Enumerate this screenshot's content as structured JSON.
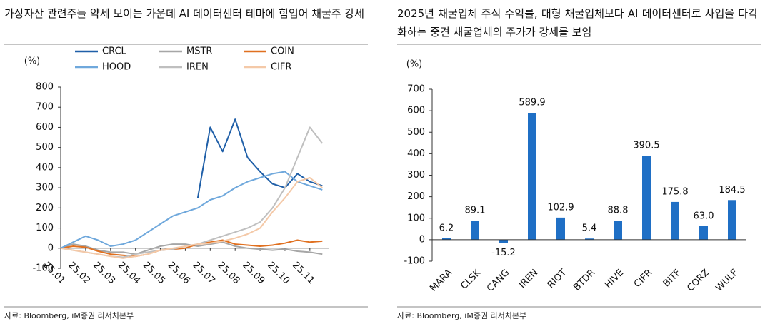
{
  "chart_data": [
    {
      "type": "line",
      "title": "가상자산 관련주들 약세 보이는 가운데 AI 데이터센터 테마에 힘입어 채굴주 강세",
      "y_label": "(%)",
      "source": "자료: Bloomberg, iM증권 리서치본부",
      "categories": [
        "25.01",
        null,
        "25.02",
        null,
        "25.03",
        null,
        "25.04",
        null,
        "25.05",
        null,
        "25.06",
        null,
        "25.07",
        null,
        "25.08",
        null,
        "25.09",
        null,
        "25.10",
        null,
        "25.11",
        null
      ],
      "ylim": [
        -100,
        800
      ],
      "yticks": [
        -100,
        0,
        100,
        200,
        300,
        400,
        500,
        600,
        700,
        800
      ],
      "series": [
        {
          "name": "CRCL",
          "color": "#1f5fa8",
          "values": [
            null,
            null,
            null,
            null,
            null,
            null,
            null,
            null,
            null,
            null,
            null,
            250,
            600,
            480,
            640,
            450,
            380,
            320,
            300,
            370,
            330,
            310
          ]
        },
        {
          "name": "MSTR",
          "color": "#a6a6a6",
          "values": [
            0,
            20,
            10,
            -10,
            -20,
            -20,
            -30,
            -10,
            10,
            20,
            20,
            10,
            20,
            30,
            10,
            0,
            -5,
            -10,
            -5,
            -15,
            -20,
            -30
          ]
        },
        {
          "name": "COIN",
          "color": "#e07020",
          "values": [
            0,
            10,
            5,
            -15,
            -30,
            -35,
            -40,
            -30,
            -10,
            -5,
            0,
            20,
            30,
            40,
            20,
            15,
            10,
            15,
            25,
            40,
            30,
            35
          ]
        },
        {
          "name": "HOOD",
          "color": "#6fa8dc",
          "values": [
            0,
            30,
            60,
            40,
            10,
            20,
            40,
            80,
            120,
            160,
            180,
            200,
            240,
            260,
            300,
            330,
            350,
            370,
            380,
            330,
            310,
            290
          ]
        },
        {
          "name": "IREN",
          "color": "#bfbfbf",
          "values": [
            0,
            -10,
            -20,
            -30,
            -40,
            -45,
            -30,
            -20,
            -10,
            -5,
            10,
            20,
            40,
            60,
            80,
            100,
            130,
            200,
            300,
            450,
            600,
            520
          ]
        },
        {
          "name": "CIFR",
          "color": "#f4c9a8",
          "values": [
            0,
            -10,
            -20,
            -30,
            -40,
            -50,
            -40,
            -30,
            -10,
            0,
            10,
            20,
            25,
            35,
            50,
            70,
            100,
            180,
            250,
            330,
            350,
            300
          ]
        }
      ]
    },
    {
      "type": "bar",
      "title": "2025년 채굴업체 주식 수익률, 대형 채굴업체보다 AI 데이터센터로 사업을 다각화하는 중견 채굴업체의 주가가 강세를 보임",
      "y_label": "(%)",
      "source": "자료: Bloomberg, iM증권 리서치본부",
      "categories": [
        "MARA",
        "CLSK",
        "CANG",
        "IREN",
        "RIOT",
        "BTDR",
        "HIVE",
        "CIFR",
        "BITF",
        "CORZ",
        "WULF"
      ],
      "values": [
        6.2,
        89.1,
        -15.2,
        589.9,
        102.9,
        5.4,
        88.8,
        390.5,
        175.8,
        63.0,
        184.5
      ],
      "value_labels": [
        "6.2",
        "89.1",
        "-15.2",
        "589.9",
        "102.9",
        "5.4",
        "88.8",
        "390.5",
        "175.8",
        "63.0",
        "184.5"
      ],
      "color": "#1f6fc5",
      "ylim": [
        -100,
        700
      ],
      "yticks": [
        -100,
        0,
        100,
        200,
        300,
        400,
        500,
        600,
        700
      ]
    }
  ]
}
